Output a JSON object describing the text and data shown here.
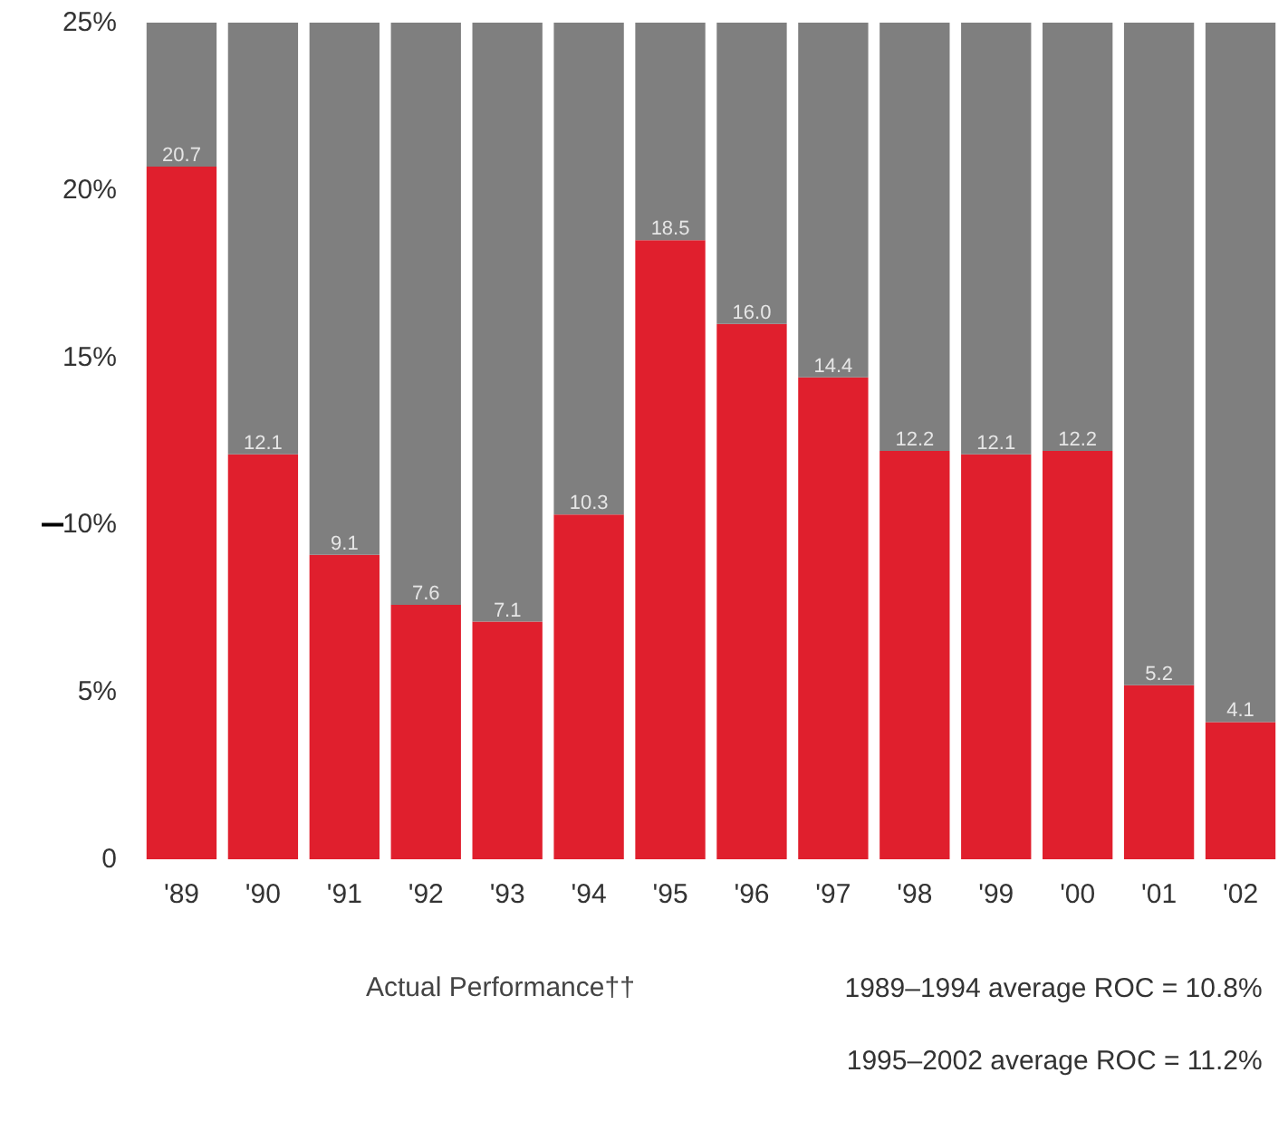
{
  "chart_data": {
    "type": "bar",
    "stacked": true,
    "categories": [
      "'89",
      "'90",
      "'91",
      "'92",
      "'93",
      "'94",
      "'95",
      "'96",
      "'97",
      "'98",
      "'99",
      "'00",
      "'01",
      "'02"
    ],
    "series": [
      {
        "name": "Actual Performance††",
        "color": "#e01f2d",
        "values": [
          20.7,
          12.1,
          9.1,
          7.6,
          7.1,
          10.3,
          18.5,
          16.0,
          14.4,
          12.2,
          12.1,
          12.2,
          5.2,
          4.1
        ],
        "value_labels": [
          "20.7",
          "12.1",
          "9.1",
          "7.6",
          "7.1",
          "10.3",
          "18.5",
          "16.0",
          "14.4",
          "12.2",
          "12.1",
          "12.2",
          "5.2",
          "4.1"
        ]
      },
      {
        "color": "#7f7f7f",
        "values": [
          4.3,
          12.9,
          15.9,
          17.4,
          17.9,
          14.7,
          6.5,
          9.0,
          10.6,
          12.8,
          12.9,
          12.8,
          19.8,
          20.9
        ]
      }
    ],
    "ylim": [
      0,
      25
    ],
    "yticks": [
      {
        "value": 0,
        "label": "0"
      },
      {
        "value": 5,
        "label": "5%"
      },
      {
        "value": 10,
        "label": "10%"
      },
      {
        "value": 15,
        "label": "15%"
      },
      {
        "value": 20,
        "label": "20%"
      },
      {
        "value": 25,
        "label": "25%"
      }
    ],
    "grid": false,
    "legend": "bottom",
    "annotations": [
      "1989–1994 average ROC = 10.8%",
      "1995–2002 average ROC = 11.2%"
    ]
  }
}
